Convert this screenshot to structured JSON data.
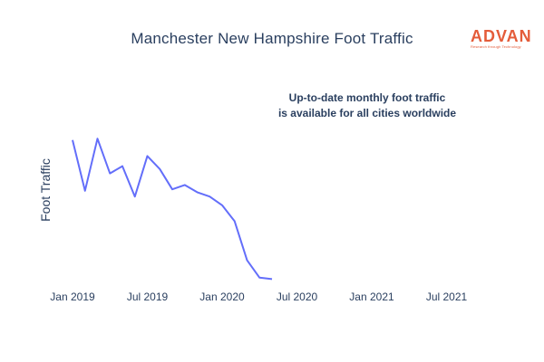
{
  "chart_data": {
    "type": "line",
    "title": "Manchester New Hampshire Foot Traffic",
    "ylabel": "Foot Traffic",
    "xlabel": "",
    "annotation_lines": [
      "Up-to-date monthly foot traffic",
      "is available for all cities worldwide"
    ],
    "x_ticks": [
      "Jan 2019",
      "Jul 2019",
      "Jan 2020",
      "Jul 2020",
      "Jan 2021",
      "Jul 2021"
    ],
    "series": [
      {
        "color": "#636efa",
        "x": [
          "2019-01",
          "2019-02",
          "2019-03",
          "2019-04",
          "2019-05",
          "2019-06",
          "2019-07",
          "2019-08",
          "2019-09",
          "2019-10",
          "2019-11",
          "2019-12",
          "2020-01",
          "2020-02",
          "2020-03",
          "2020-04",
          "2020-05"
        ],
        "y": [
          0.97,
          0.62,
          0.98,
          0.74,
          0.79,
          0.58,
          0.86,
          0.77,
          0.63,
          0.66,
          0.61,
          0.58,
          0.52,
          0.41,
          0.14,
          0.02,
          0.01
        ]
      }
    ],
    "y_ticks_shown": false,
    "grid": false
  },
  "logo": {
    "text": "ADVAN",
    "tagline": "Research through Technology",
    "color": "#e45c3a"
  }
}
